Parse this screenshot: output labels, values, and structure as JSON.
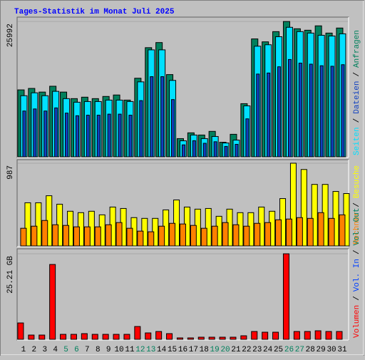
{
  "title": "Tages-Statistik im Monat Juli 2025",
  "separator": "/",
  "chart_data": [
    {
      "type": "bar",
      "series": [
        {
          "name": "Anfragen",
          "color": "#00805c",
          "values": [
            12860,
            13140,
            12440,
            13560,
            12440,
            11180,
            11460,
            11180,
            11600,
            11880,
            10900,
            15100,
            20970,
            21950,
            15800,
            3500,
            4610,
            4190,
            4890,
            2800,
            4330,
            10210,
            22650,
            22090,
            24050,
            25992,
            24600,
            24320,
            25160,
            23770,
            24740
          ]
        },
        {
          "name": "Seiten",
          "color": "#00e0ff",
          "values": [
            11740,
            12300,
            11740,
            12580,
            11180,
            10490,
            10620,
            10620,
            10900,
            10900,
            10620,
            14400,
            20550,
            20550,
            14680,
            3080,
            4190,
            3500,
            3910,
            2660,
            3220,
            9790,
            21250,
            21530,
            23070,
            24880,
            24050,
            23770,
            23350,
            23210,
            23630
          ]
        },
        {
          "name": "Dateien",
          "color": "#1040c0",
          "values": [
            8800,
            9200,
            8800,
            9400,
            8400,
            7900,
            8000,
            8000,
            8200,
            8200,
            8000,
            10800,
            15400,
            15400,
            11000,
            2300,
            3100,
            2600,
            2900,
            2000,
            2400,
            7300,
            15900,
            16100,
            17300,
            18700,
            18000,
            17800,
            17500,
            17400,
            17700
          ]
        }
      ],
      "ylim": [
        0,
        26700
      ],
      "yticks": [
        25992
      ]
    },
    {
      "type": "bar",
      "series": [
        {
          "name": "Besuche",
          "color": "#ffff00",
          "values": [
            515,
            515,
            599,
            498,
            414,
            397,
            414,
            371,
            464,
            447,
            338,
            329,
            329,
            430,
            549,
            464,
            439,
            447,
            354,
            439,
            397,
            397,
            464,
            414,
            565,
            987,
            912,
            734,
            734,
            650,
            625
          ]
        },
        {
          "name": "Rechner",
          "color": "#ff8000",
          "values": [
            211,
            236,
            304,
            253,
            245,
            228,
            228,
            228,
            253,
            279,
            211,
            177,
            169,
            236,
            270,
            262,
            245,
            211,
            236,
            279,
            253,
            236,
            270,
            279,
            312,
            321,
            338,
            329,
            397,
            329,
            371
          ]
        }
      ],
      "ylim": [
        0,
        1012
      ],
      "yticks": [
        987
      ]
    },
    {
      "type": "bar",
      "series": [
        {
          "name": "Volumen",
          "color": "#ff0000",
          "values": [
            4.83,
            1.26,
            1.26,
            22.06,
            1.47,
            1.47,
            1.68,
            1.47,
            1.47,
            1.47,
            1.47,
            3.78,
            1.89,
            2.31,
            1.68,
            0.42,
            0.42,
            0.63,
            0.63,
            0.63,
            0.63,
            1.05,
            2.31,
            2.1,
            2.1,
            25.21,
            2.31,
            2.31,
            2.52,
            2.31,
            2.31
          ]
        }
      ],
      "legend_extra": [
        {
          "name": "Vol. In",
          "color": "#0040ff"
        },
        {
          "name": "Vol. Out",
          "color": "#00805c"
        }
      ],
      "ylim": [
        0,
        26.47
      ],
      "yticks": [
        {
          "value": 25.21,
          "label": "25.21 GB"
        }
      ],
      "categories": [
        "1",
        "2",
        "3",
        "4",
        "5",
        "6",
        "7",
        "8",
        "9",
        "10",
        "11",
        "12",
        "13",
        "14",
        "15",
        "16",
        "17",
        "18",
        "19",
        "20",
        "21",
        "22",
        "23",
        "24",
        "25",
        "26",
        "27",
        "28",
        "29",
        "30",
        "31"
      ],
      "category_colors": [
        "#000000",
        "#000000",
        "#000000",
        "#000000",
        "#00805c",
        "#00805c",
        "#000000",
        "#000000",
        "#000000",
        "#000000",
        "#000000",
        "#00805c",
        "#00805c",
        "#000000",
        "#000000",
        "#000000",
        "#000000",
        "#000000",
        "#00805c",
        "#00805c",
        "#000000",
        "#000000",
        "#000000",
        "#000000",
        "#000000",
        "#00805c",
        "#00805c",
        "#000000",
        "#000000",
        "#000000",
        "#000000"
      ]
    }
  ]
}
